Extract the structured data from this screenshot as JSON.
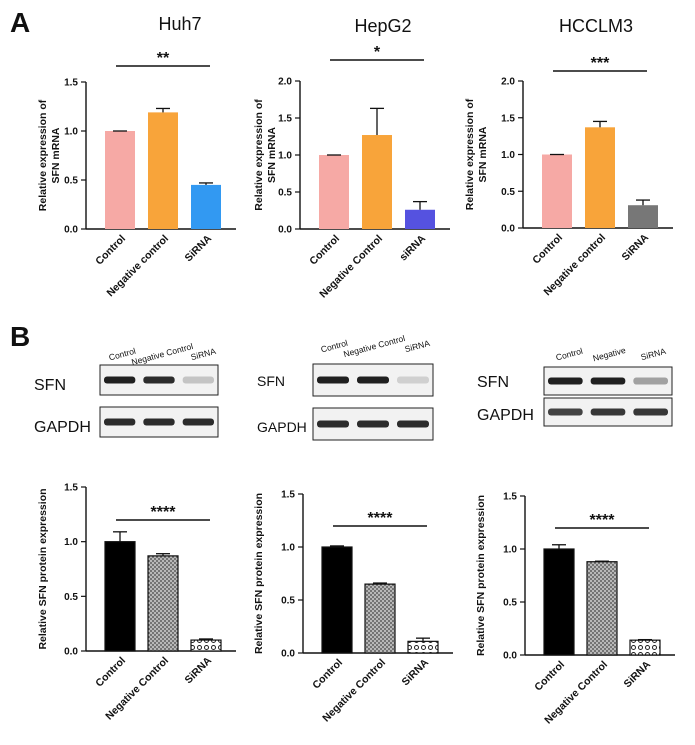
{
  "panel_labels": {
    "a": "A",
    "b": "B"
  },
  "blots": [
    {
      "lanes": [
        "Control",
        "Negative Control",
        "SiRNA"
      ],
      "row1": "SFN",
      "row2": "GAPDH",
      "band_intensity": [
        0.95,
        0.9,
        0.25
      ],
      "gapdh_intensity": [
        0.9,
        0.9,
        0.9
      ]
    },
    {
      "lanes": [
        "Control",
        "Negative Control",
        "SiRNA"
      ],
      "row1": "SFN",
      "row2": "GAPDH",
      "band_intensity": [
        0.95,
        0.95,
        0.2
      ],
      "gapdh_intensity": [
        0.9,
        0.9,
        0.9
      ]
    },
    {
      "lanes": [
        "Control",
        "Negative",
        "SiRNA"
      ],
      "row1": "SFN",
      "row2": "GAPDH",
      "band_intensity": [
        0.95,
        0.95,
        0.4
      ],
      "gapdh_intensity": [
        0.8,
        0.85,
        0.85
      ]
    }
  ],
  "chart_data": [
    {
      "type": "bar",
      "title": "Huh7",
      "ylabel": [
        "Relative expression of",
        "SFN mRNA"
      ],
      "categories": [
        "Control",
        "Negative control",
        "SiRNA"
      ],
      "values": [
        1.0,
        1.19,
        0.45
      ],
      "errors": [
        0.0,
        0.04,
        0.02
      ],
      "ylim": [
        0,
        1.5
      ],
      "yticks": [
        0.0,
        0.5,
        1.0,
        1.5
      ],
      "tick_labels": [
        "0.0",
        "0.5",
        "1.0",
        "1.5"
      ],
      "significance": "**",
      "colors": [
        "#f6a9a5",
        "#f8a43a",
        "#3299f2"
      ]
    },
    {
      "type": "bar",
      "title": "HepG2",
      "ylabel": [
        "Relative expression of",
        "SFN mRNA"
      ],
      "categories": [
        "Control",
        "Negative Control",
        "siRNA"
      ],
      "values": [
        1.0,
        1.27,
        0.26
      ],
      "errors": [
        0.0,
        0.36,
        0.11
      ],
      "ylim": [
        0,
        2.0
      ],
      "yticks": [
        0.0,
        0.5,
        1.0,
        1.5,
        2.0
      ],
      "tick_labels": [
        "0.0",
        "0.5",
        "1.0",
        "1.5",
        "2.0"
      ],
      "significance": "*",
      "colors": [
        "#f6a9a5",
        "#f8a43a",
        "#5552e0"
      ]
    },
    {
      "type": "bar",
      "title": "HCCLM3",
      "ylabel": [
        "Relative expression of",
        "SFN mRNA"
      ],
      "categories": [
        "Control",
        "Negative control",
        "SiRNA"
      ],
      "values": [
        1.0,
        1.37,
        0.31
      ],
      "errors": [
        0.0,
        0.08,
        0.07
      ],
      "ylim": [
        0,
        2.0
      ],
      "yticks": [
        0.0,
        0.5,
        1.0,
        1.5,
        2.0
      ],
      "tick_labels": [
        "0.0",
        "0.5",
        "1.0",
        "1.5",
        "2.0"
      ],
      "significance": "***",
      "colors": [
        "#f6a9a5",
        "#f8a43a",
        "#777777"
      ]
    },
    {
      "type": "bar",
      "title": "",
      "ylabel": [
        "Relative SFN protein expression"
      ],
      "categories": [
        "Control",
        "Negative Control",
        "SiRNA"
      ],
      "values": [
        1.0,
        0.87,
        0.1
      ],
      "errors": [
        0.09,
        0.02,
        0.01
      ],
      "ylim": [
        0,
        1.5
      ],
      "yticks": [
        0.0,
        0.5,
        1.0,
        1.5
      ],
      "tick_labels": [
        "0.0",
        "0.5",
        "1.0",
        "1.5"
      ],
      "significance": "****",
      "patterns": [
        "solid",
        "dots",
        "circles"
      ]
    },
    {
      "type": "bar",
      "title": "",
      "ylabel": [
        "Relative SFN protein expression"
      ],
      "categories": [
        "Control",
        "Negative Control",
        "SiRNA"
      ],
      "values": [
        1.0,
        0.65,
        0.11
      ],
      "errors": [
        0.01,
        0.01,
        0.03
      ],
      "ylim": [
        0,
        1.5
      ],
      "yticks": [
        0.0,
        0.5,
        1.0,
        1.5
      ],
      "tick_labels": [
        "0.0",
        "0.5",
        "1.0",
        "1.5"
      ],
      "significance": "****",
      "patterns": [
        "solid",
        "dots",
        "circles"
      ]
    },
    {
      "type": "bar",
      "title": "",
      "ylabel": [
        "Relative SFN protein expression"
      ],
      "categories": [
        "Control",
        "Negative Control",
        "SiRNA"
      ],
      "values": [
        1.0,
        0.88,
        0.14
      ],
      "errors": [
        0.04,
        0.005,
        0.005
      ],
      "ylim": [
        0,
        1.5
      ],
      "yticks": [
        0.0,
        0.5,
        1.0,
        1.5
      ],
      "tick_labels": [
        "0.0",
        "0.5",
        "1.0",
        "1.5"
      ],
      "significance": "****",
      "patterns": [
        "solid",
        "dots",
        "circles"
      ]
    }
  ]
}
